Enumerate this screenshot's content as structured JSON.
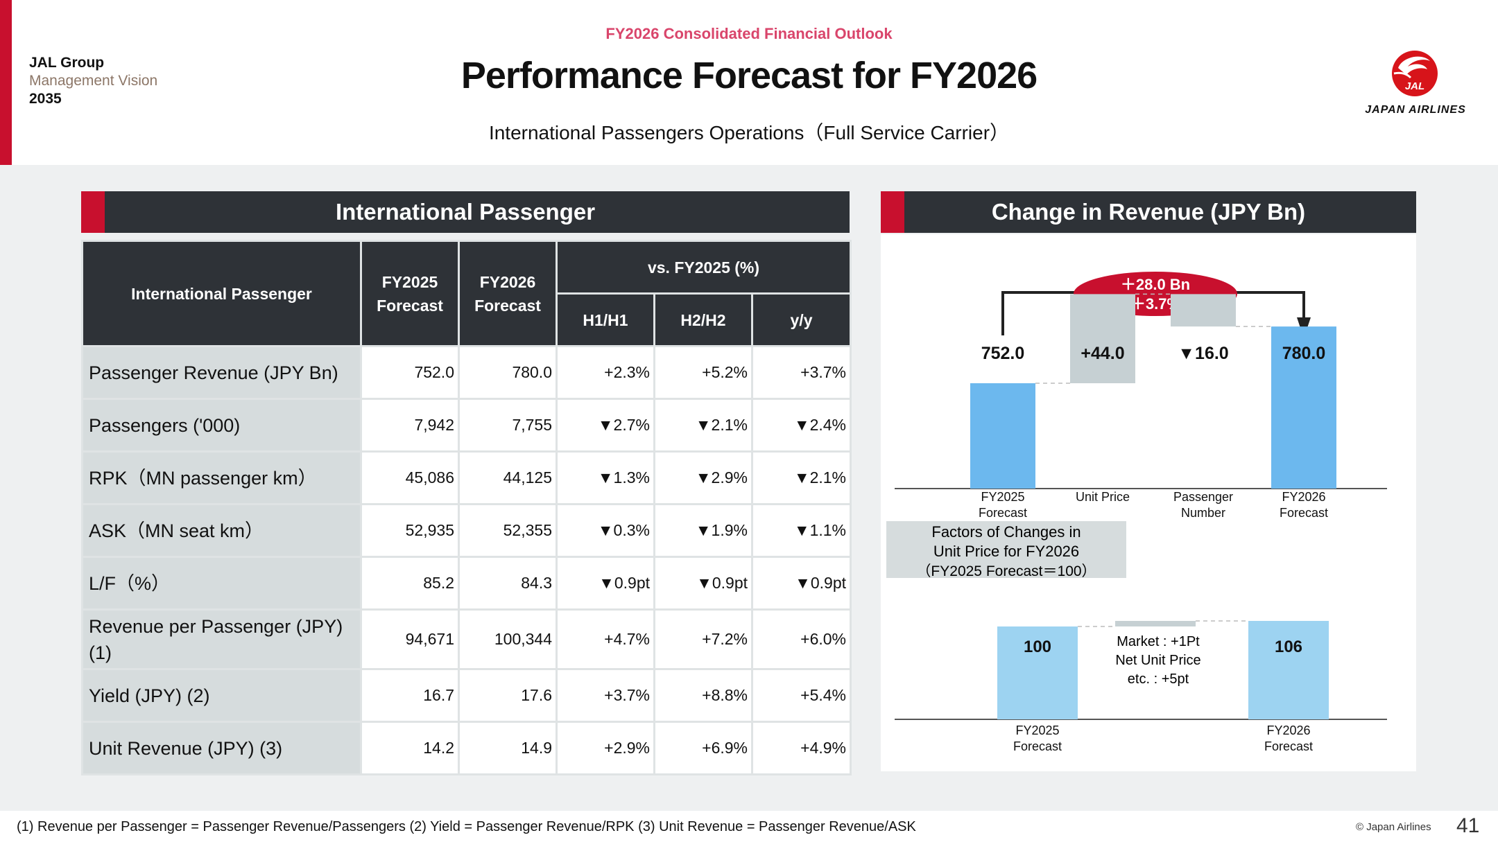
{
  "header": {
    "brand_line1": "JAL Group",
    "brand_line2": "Management Vision",
    "brand_line3": "2035",
    "supertitle": "FY2026 Consolidated Financial Outlook",
    "title": "Performance Forecast for FY2026",
    "subtitle": "International Passengers Operations（Full Service Carrier）",
    "logo_mark": "JAL",
    "logo_text": "JAPAN AIRLINES"
  },
  "left_panel": {
    "title": "International Passenger",
    "table": {
      "corner": "International Passenger",
      "col_fy2025": "FY2025 Forecast",
      "col_fy2026": "FY2026 Forecast",
      "group": "vs. FY2025 (%)",
      "col_h1": "H1/H1",
      "col_h2": "H2/H2",
      "col_yy": "y/y",
      "rows": [
        {
          "label": "Passenger Revenue (JPY Bn)",
          "fy2025": "752.0",
          "fy2026": "780.0",
          "h1": "+2.3%",
          "h2": "+5.2%",
          "yy": "+3.7%"
        },
        {
          "label": "Passengers ('000)",
          "fy2025": "7,942",
          "fy2026": "7,755",
          "h1": "▼2.7%",
          "h2": "▼2.1%",
          "yy": "▼2.4%"
        },
        {
          "label": "RPK（MN passenger km）",
          "fy2025": "45,086",
          "fy2026": "44,125",
          "h1": "▼1.3%",
          "h2": "▼2.9%",
          "yy": "▼2.1%"
        },
        {
          "label": "ASK（MN seat km）",
          "fy2025": "52,935",
          "fy2026": "52,355",
          "h1": "▼0.3%",
          "h2": "▼1.9%",
          "yy": "▼1.1%"
        },
        {
          "label": "L/F（%）",
          "fy2025": "85.2",
          "fy2026": "84.3",
          "h1": "▼0.9pt",
          "h2": "▼0.9pt",
          "yy": "▼0.9pt"
        },
        {
          "label": "Revenue per Passenger (JPY) (1)",
          "fy2025": "94,671",
          "fy2026": "100,344",
          "h1": "+4.7%",
          "h2": "+7.2%",
          "yy": "+6.0%"
        },
        {
          "label": "Yield (JPY) (2)",
          "fy2025": "16.7",
          "fy2026": "17.6",
          "h1": "+3.7%",
          "h2": "+8.8%",
          "yy": "+5.4%"
        },
        {
          "label": "Unit Revenue (JPY) (3)",
          "fy2025": "14.2",
          "fy2026": "14.9",
          "h1": "+2.9%",
          "h2": "+6.9%",
          "yy": "+4.9%"
        }
      ]
    }
  },
  "right_panel": {
    "title": "Change in Revenue (JPY Bn)",
    "bubble_line1": "＋28.0 Bn",
    "bubble_line2": "（＋3.7%）",
    "factors_line1": "Factors of Changes in",
    "factors_line2": "Unit Price for FY2026",
    "factors_line3": "（FY2025 Forecast＝100）",
    "notes_line1": "Market : +1Pt",
    "notes_line2": "Net Unit Price",
    "notes_line3": "etc. : +5pt"
  },
  "chart_data": [
    {
      "type": "bar",
      "subtype": "waterfall",
      "title": "Change in Revenue (JPY Bn)",
      "categories": [
        "FY2025 Forecast",
        "Unit Price",
        "Passenger Number",
        "FY2026 Forecast"
      ],
      "category_lines": [
        [
          "FY2025",
          "Forecast"
        ],
        [
          "Unit Price"
        ],
        [
          "Passenger",
          "Number"
        ],
        [
          "FY2026",
          "Forecast"
        ]
      ],
      "values": [
        752.0,
        44.0,
        -16.0,
        780.0
      ],
      "labels": [
        "752.0",
        "+44.0",
        "▼16.0",
        "780.0"
      ],
      "kinds": [
        "total",
        "delta",
        "delta",
        "total"
      ],
      "colors": {
        "total": "#6cb8ee",
        "delta": "#c6d0d3"
      }
    },
    {
      "type": "bar",
      "subtype": "waterfall",
      "title": "Factors of Changes in Unit Price for FY2026 (FY2025 Forecast＝100)",
      "categories": [
        "FY2025 Forecast",
        "Factors",
        "FY2026 Forecast"
      ],
      "category_lines": [
        [
          "FY2025",
          "Forecast"
        ],
        [],
        [
          "FY2026",
          "Forecast"
        ]
      ],
      "values": [
        100,
        6,
        106
      ],
      "labels": [
        "100",
        "",
        "106"
      ],
      "kinds": [
        "total",
        "delta",
        "total"
      ],
      "colors": {
        "total": "#9dd3f1",
        "delta": "#c6d0d3"
      }
    }
  ],
  "footer": {
    "note": "(1) Revenue per Passenger = Passenger Revenue/Passengers (2) Yield = Passenger Revenue/RPK (3) Unit Revenue = Passenger Revenue/ASK",
    "copyright": "© Japan Airlines",
    "page_number": "41"
  }
}
